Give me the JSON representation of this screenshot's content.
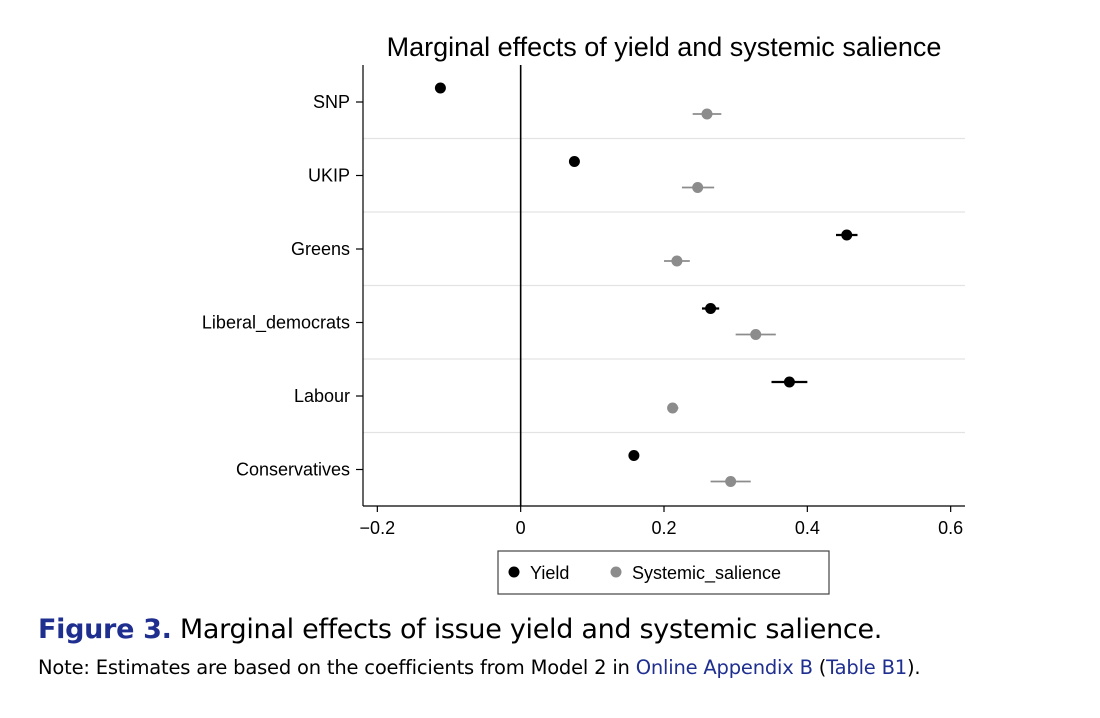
{
  "chart_data": {
    "type": "scatter",
    "title": "Marginal effects of yield and systemic salience",
    "xlabel": "",
    "ylabel": "",
    "xlim": [
      -0.22,
      0.62
    ],
    "xticks": [
      -0.2,
      0,
      0.2,
      0.4,
      0.6
    ],
    "xtick_labels": [
      "−0.2",
      "0",
      "0.2",
      "0.4",
      "0.6"
    ],
    "categories": [
      "SNP",
      "UKIP",
      "Greens",
      "Liberal_democrats",
      "Labour",
      "Conservatives"
    ],
    "reference_line_x": 0,
    "grid": "horizontal separators between categories",
    "legend_position": "bottom",
    "series": [
      {
        "name": "Yield",
        "color": "#000000",
        "values": [
          -0.112,
          0.075,
          0.455,
          0.265,
          0.375,
          0.158
        ],
        "ci_low": [
          -0.117,
          0.068,
          0.44,
          0.253,
          0.35,
          0.152
        ],
        "ci_high": [
          -0.107,
          0.082,
          0.47,
          0.277,
          0.4,
          0.164
        ]
      },
      {
        "name": "Systemic_salience",
        "color": "#8c8c8c",
        "values": [
          0.26,
          0.247,
          0.218,
          0.328,
          0.212,
          0.293
        ],
        "ci_low": [
          0.24,
          0.225,
          0.2,
          0.3,
          0.205,
          0.265
        ],
        "ci_high": [
          0.28,
          0.27,
          0.236,
          0.356,
          0.22,
          0.321
        ]
      }
    ]
  },
  "caption": {
    "label": "Figure 3.",
    "text": "Marginal effects of issue yield and systemic salience.",
    "note_prefix": "Note: Estimates are based on the coefficients from Model 2 in ",
    "note_link1": "Online Appendix B",
    "note_middle": " (",
    "note_link2": "Table B1",
    "note_suffix": ")."
  }
}
